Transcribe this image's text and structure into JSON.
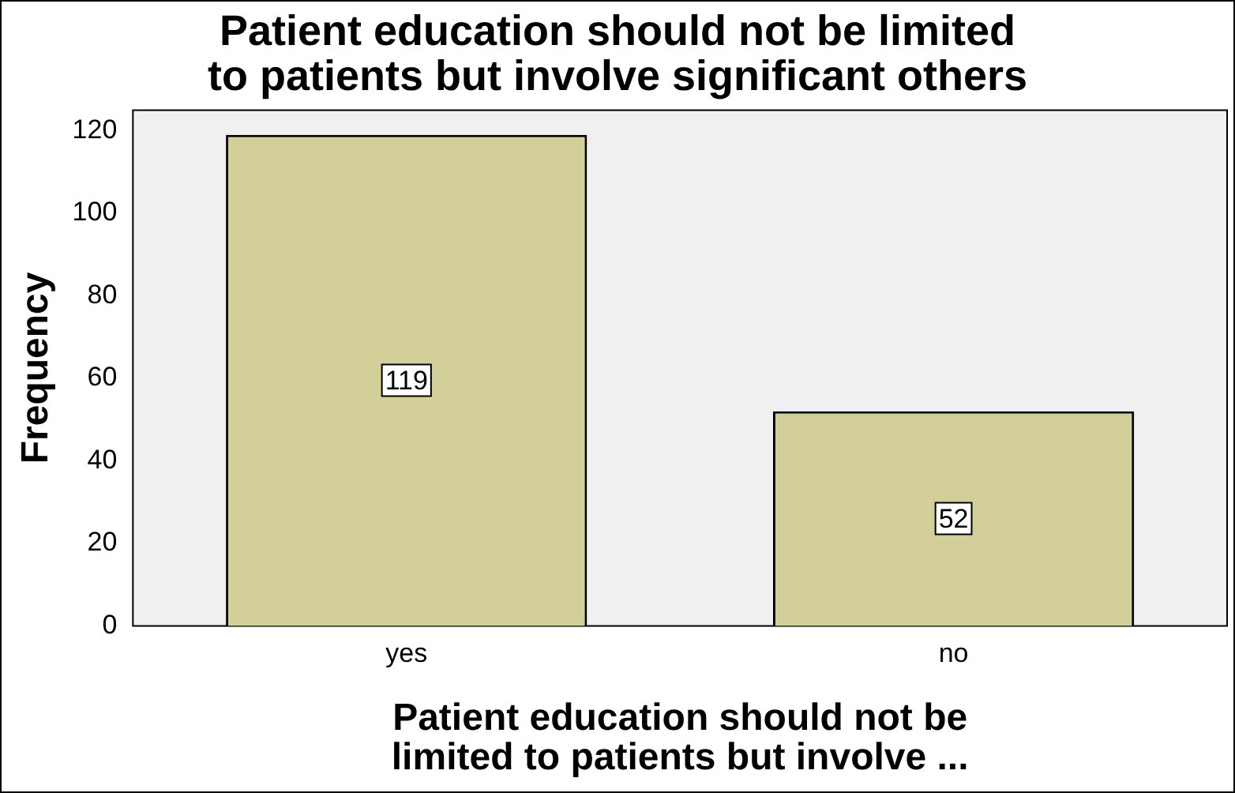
{
  "chart_data": {
    "type": "bar",
    "title": "Patient education should not be limited\nto patients but involve significant others",
    "xlabel": "Patient education should not be\nlimited to patients but involve ...",
    "ylabel": "Frequency",
    "categories": [
      "yes",
      "no"
    ],
    "values": [
      119,
      52
    ],
    "color": "#d3cf98",
    "ylim": [
      0,
      125
    ],
    "yticks": [
      0,
      20,
      40,
      60,
      80,
      100,
      120
    ],
    "grid": false,
    "data_labels": true
  }
}
